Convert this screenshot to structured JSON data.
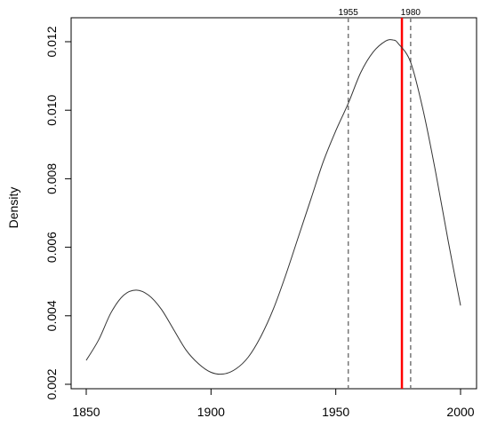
{
  "chart_data": {
    "type": "line",
    "title": "",
    "xlabel": "",
    "ylabel": "Density",
    "xlim": [
      1850,
      2000
    ],
    "ylim": [
      0.002,
      0.012
    ],
    "xticks": [
      1850,
      1900,
      1950,
      2000
    ],
    "xtick_labels": [
      "1850",
      "1900",
      "1950",
      "2000"
    ],
    "yticks": [
      0.002,
      0.004,
      0.006,
      0.008,
      0.01,
      0.012
    ],
    "ytick_labels": [
      "0.002",
      "0.004",
      "0.006",
      "0.008",
      "0.010",
      "0.012"
    ],
    "grid": false,
    "series": [
      {
        "color": "#333333",
        "x": [
          1850,
          1855,
          1860,
          1865,
          1870,
          1875,
          1880,
          1885,
          1890,
          1895,
          1900,
          1905,
          1910,
          1915,
          1920,
          1925,
          1930,
          1935,
          1940,
          1945,
          1950,
          1955,
          1960,
          1965,
          1970,
          1973,
          1975,
          1980,
          1985,
          1990,
          1995,
          2000
        ],
        "y": [
          0.0027,
          0.0033,
          0.0041,
          0.0046,
          0.00475,
          0.0046,
          0.0042,
          0.0036,
          0.003,
          0.0026,
          0.00235,
          0.0023,
          0.00245,
          0.0028,
          0.0034,
          0.0042,
          0.0052,
          0.0063,
          0.0074,
          0.0085,
          0.0094,
          0.0102,
          0.0111,
          0.0117,
          0.01202,
          0.01205,
          0.01195,
          0.0114,
          0.01,
          0.0082,
          0.0062,
          0.0043
        ]
      }
    ],
    "vlines": [
      {
        "x": 1955,
        "label": "1955",
        "color": "#777777",
        "style": "dashed"
      },
      {
        "x": 1980,
        "label": "1980",
        "color": "#777777",
        "style": "dashed"
      },
      {
        "x": 1976.5,
        "label": "",
        "color": "#ff0000",
        "style": "solid"
      }
    ]
  }
}
